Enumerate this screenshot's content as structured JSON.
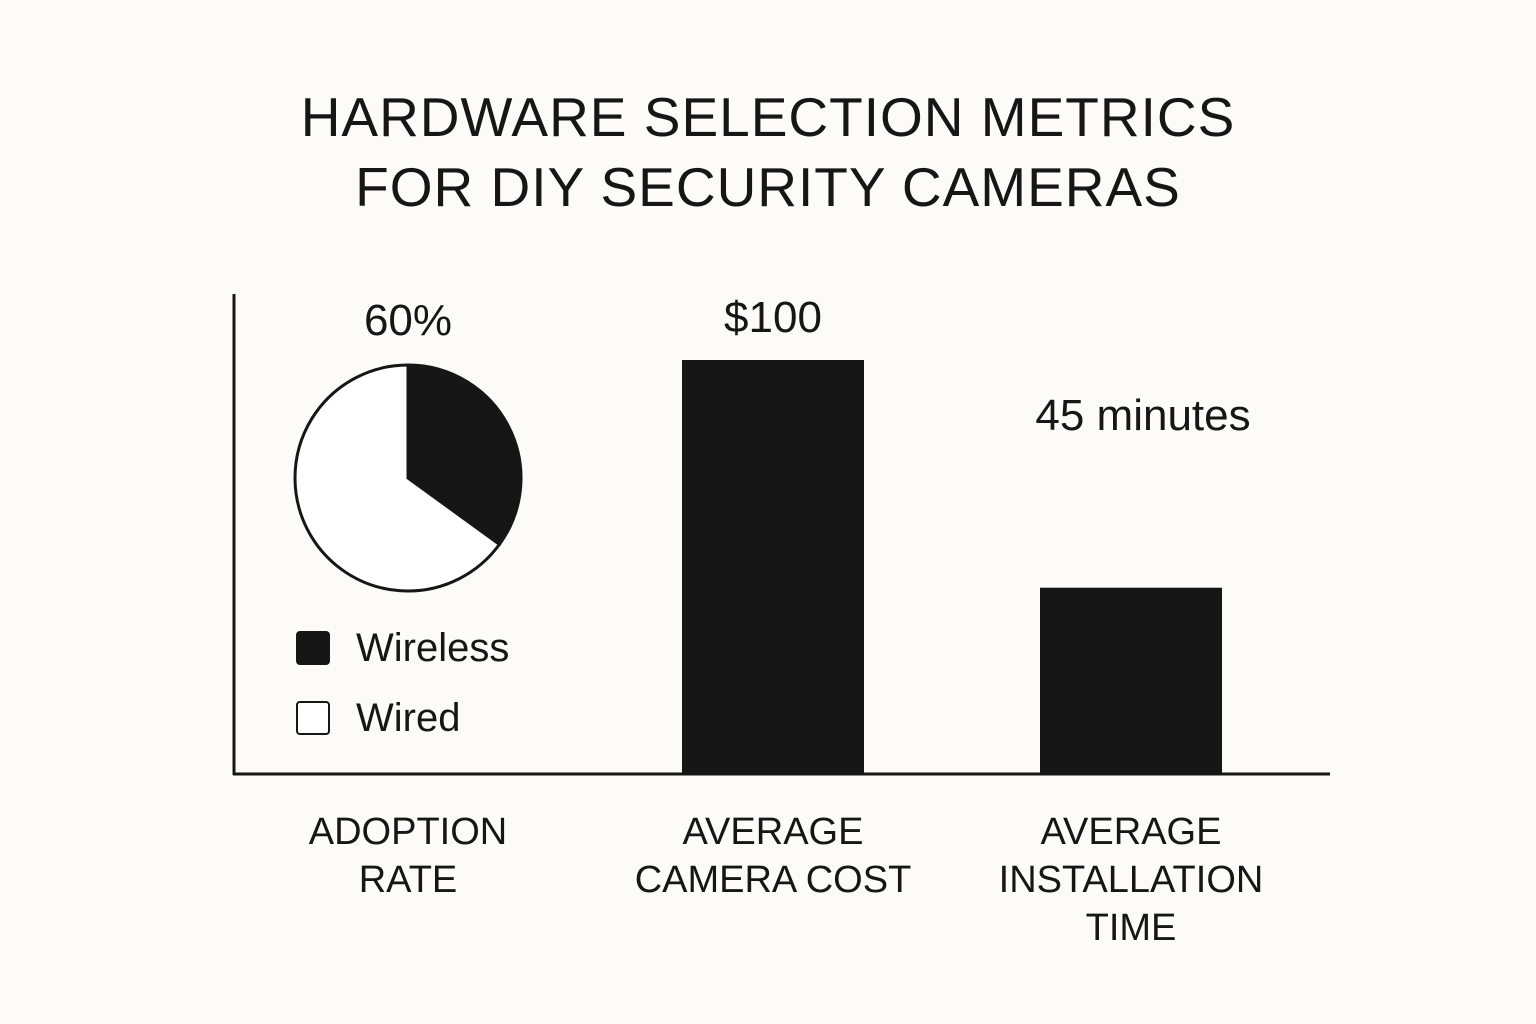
{
  "title_lines": [
    "HARDWARE SELECTION METRICS",
    "FOR DIY SECURITY CAMERAS"
  ],
  "chart_data": {
    "type": "bar",
    "categories": [
      "ADOPTION\nRATE",
      "AVERAGE\nCAMERA COST",
      "AVERAGE\nINSTALLATION\nTIME"
    ],
    "adoption": {
      "type": "pie",
      "value_label": "60%",
      "slices": [
        {
          "name": "Wireless",
          "fraction": 0.35,
          "color": "#161616"
        },
        {
          "name": "Wired",
          "fraction": 0.65,
          "color": "#ffffff"
        }
      ]
    },
    "bars": [
      {
        "category_index": 1,
        "value": 100,
        "label": "$100",
        "unit": "USD"
      },
      {
        "category_index": 2,
        "value": 45,
        "label": "45 minutes",
        "unit": "minutes"
      }
    ],
    "legend": [
      {
        "name": "Wireless",
        "color": "#161616"
      },
      {
        "name": "Wired",
        "color": "#ffffff"
      }
    ],
    "legend_position": "bottom-left",
    "grid": false
  },
  "colors": {
    "ink": "#161616",
    "background": "#fcfbf7"
  }
}
